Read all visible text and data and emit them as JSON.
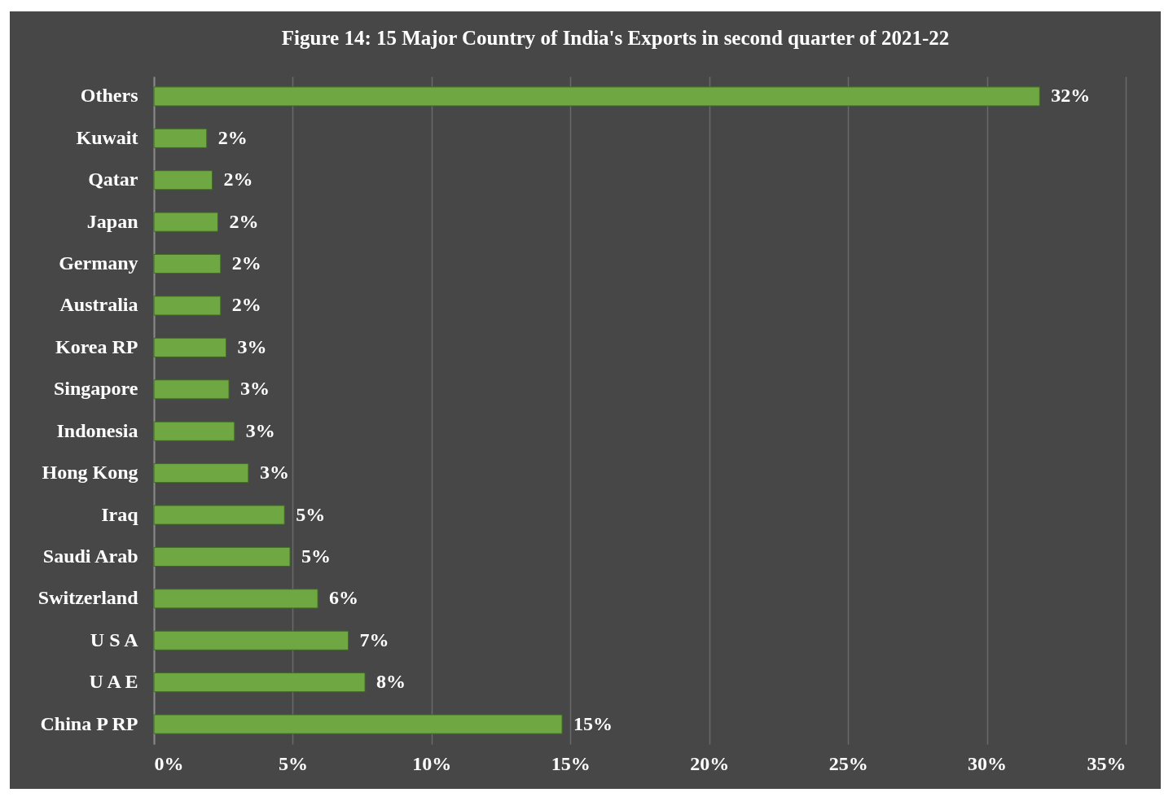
{
  "chart_data": {
    "type": "bar",
    "orientation": "horizontal",
    "title": "Figure 14: 15 Major Country of India's Exports in second quarter of 2021-22",
    "categories": [
      "Others",
      "Kuwait",
      "Qatar",
      "Japan",
      "Germany",
      "Australia",
      "Korea RP",
      "Singapore",
      "Indonesia",
      "Hong Kong",
      "Iraq",
      "Saudi Arab",
      "Switzerland",
      "U S A",
      "U A E",
      "China P RP"
    ],
    "values": [
      31.9,
      1.9,
      2.1,
      2.3,
      2.4,
      2.4,
      2.6,
      2.7,
      2.9,
      3.4,
      4.7,
      4.9,
      5.9,
      7.0,
      7.6,
      14.7
    ],
    "value_labels": [
      "32%",
      "2%",
      "2%",
      "2%",
      "2%",
      "2%",
      "3%",
      "3%",
      "3%",
      "3%",
      "5%",
      "5%",
      "6%",
      "7%",
      "8%",
      "15%"
    ],
    "color": "#6fa843",
    "xlim": [
      0,
      35
    ],
    "xticks": [
      {
        "value": 0,
        "label": "0%"
      },
      {
        "value": 5,
        "label": "5%"
      },
      {
        "value": 10,
        "label": "10%"
      },
      {
        "value": 15,
        "label": "15%"
      },
      {
        "value": 20,
        "label": "20%"
      },
      {
        "value": 25,
        "label": "25%"
      },
      {
        "value": 30,
        "label": "30%"
      },
      {
        "value": 35,
        "label": "35%"
      }
    ],
    "grid": "x"
  }
}
